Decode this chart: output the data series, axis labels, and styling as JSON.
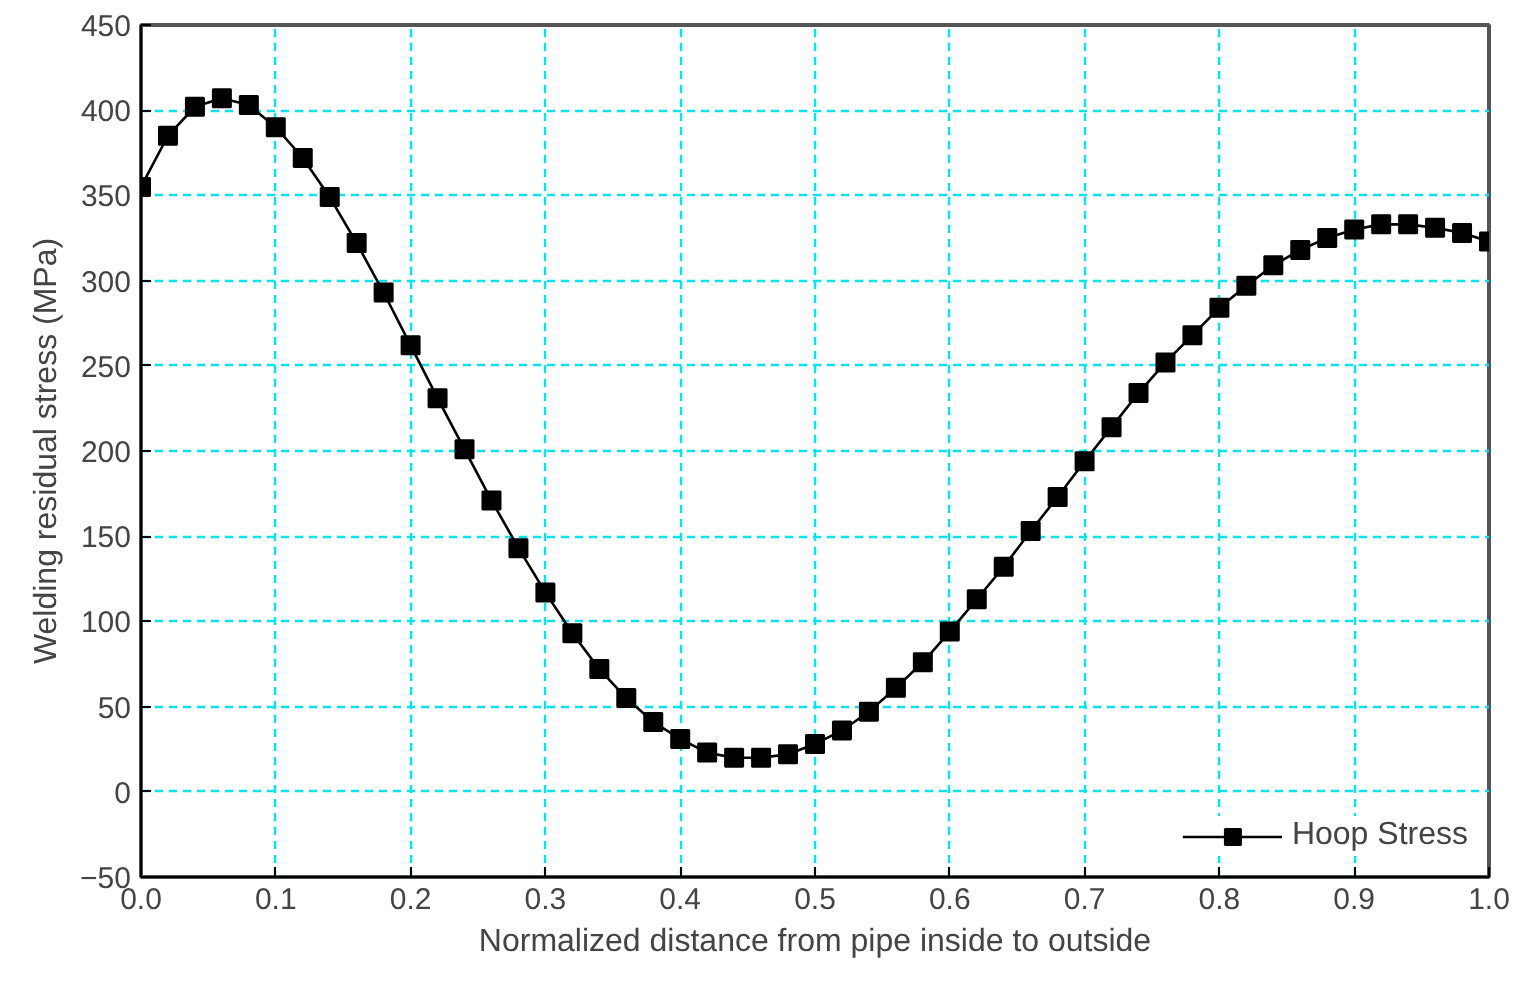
{
  "chart_data": {
    "type": "line",
    "xlabel": "Normalized distance from pipe inside to outside",
    "ylabel": "Welding residual stress (MPa)",
    "x": [
      0,
      0.02,
      0.04,
      0.06,
      0.08,
      0.1,
      0.12,
      0.14,
      0.16,
      0.18,
      0.2,
      0.22,
      0.24,
      0.26,
      0.28,
      0.3,
      0.32,
      0.34,
      0.36,
      0.38,
      0.4,
      0.42,
      0.44,
      0.46,
      0.48,
      0.5,
      0.52,
      0.54,
      0.56,
      0.58,
      0.6,
      0.62,
      0.64,
      0.66,
      0.68,
      0.7,
      0.72,
      0.74,
      0.76,
      0.78,
      0.8,
      0.82,
      0.84,
      0.86,
      0.88,
      0.9,
      0.92,
      0.94,
      0.96,
      0.98,
      1.0
    ],
    "series": [
      {
        "name": "Hoop Stress",
        "color": "#000000",
        "values": [
          355,
          385,
          402,
          407,
          403,
          390,
          372,
          349,
          322,
          293,
          262,
          231,
          201,
          171,
          143,
          117,
          93,
          72,
          55,
          41,
          31,
          23,
          20,
          20,
          22,
          28,
          36,
          47,
          61,
          76,
          94,
          113,
          132,
          153,
          173,
          194,
          214,
          234,
          252,
          268,
          284,
          297,
          309,
          318,
          325,
          330,
          333,
          333,
          331,
          328,
          323
        ]
      }
    ],
    "xlim": [
      0,
      1
    ],
    "ylim": [
      -50,
      450
    ],
    "xticks": [
      {
        "value": 0,
        "label": "0.0"
      },
      0.1,
      0.2,
      0.3,
      0.4,
      0.5,
      0.6,
      0.7,
      0.8,
      0.9,
      {
        "value": 1,
        "label": "1.0"
      }
    ],
    "yticks": [
      -50,
      0,
      50,
      100,
      150,
      200,
      250,
      300,
      350,
      400,
      450
    ],
    "grid": true,
    "legend": "bottom right",
    "marker": "square",
    "line_style": "solid"
  }
}
